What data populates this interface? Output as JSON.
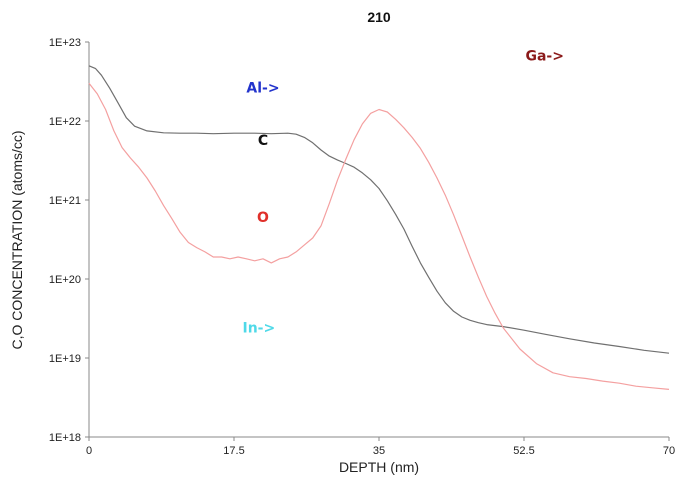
{
  "chart_data": {
    "type": "line",
    "title": "210",
    "xlabel": "DEPTH (nm)",
    "ylabel": "C,O CONCENTRATION (atoms/cc)",
    "xlim": [
      0,
      70
    ],
    "ylim": [
      1e+18,
      1e+23
    ],
    "yscale": "log",
    "grid": false,
    "x_ticks": [
      {
        "value": 0,
        "label": "0"
      },
      {
        "value": 17.5,
        "label": "17.5"
      },
      {
        "value": 35,
        "label": "35"
      },
      {
        "value": 52.5,
        "label": "52.5"
      },
      {
        "value": 70,
        "label": "70"
      }
    ],
    "y_ticks": [
      {
        "value": 1e+18,
        "label": "1E+18"
      },
      {
        "value": 1e+19,
        "label": "1E+19"
      },
      {
        "value": 1e+20,
        "label": "1E+20"
      },
      {
        "value": 1e+21,
        "label": "1E+21"
      },
      {
        "value": 1e+22,
        "label": "1E+22"
      },
      {
        "value": 1e+23,
        "label": "1E+23"
      }
    ],
    "series": [
      {
        "name": "C",
        "color": "#707070",
        "x": [
          0,
          0.8,
          1.5,
          2.5,
          3.5,
          4.5,
          5.5,
          7,
          9,
          11,
          13,
          15,
          17.5,
          20,
          22,
          24,
          25,
          26,
          27,
          28,
          29,
          30,
          31,
          32,
          33,
          34,
          35,
          36,
          37,
          38,
          39,
          40,
          41,
          42,
          43,
          44,
          45,
          46,
          47,
          48,
          50,
          52.5,
          55,
          58,
          61,
          64,
          67,
          70
        ],
        "y": [
          5e+22,
          4.6e+22,
          3.8e+22,
          2.6e+22,
          1.7e+22,
          1.1e+22,
          8.6e+21,
          7.5e+21,
          7.1e+21,
          7e+21,
          7e+21,
          6.9e+21,
          7e+21,
          7e+21,
          6.9e+21,
          7e+21,
          6.8e+21,
          6.2e+21,
          5.3e+21,
          4.3e+21,
          3.6e+21,
          3.2e+21,
          2.9e+21,
          2.6e+21,
          2.2e+21,
          1.8e+21,
          1.4e+21,
          9.8e+20,
          6.6e+20,
          4.3e+20,
          2.6e+20,
          1.6e+20,
          1.05e+20,
          7e+19,
          5e+19,
          3.9e+19,
          3.3e+19,
          3e+19,
          2.8e+19,
          2.65e+19,
          2.5e+19,
          2.25e+19,
          2e+19,
          1.75e+19,
          1.55e+19,
          1.4e+19,
          1.25e+19,
          1.15e+19
        ]
      },
      {
        "name": "O",
        "color": "#f4a0a0",
        "x": [
          0,
          1,
          2,
          3,
          4,
          5,
          6,
          7,
          8,
          9,
          10,
          11,
          12,
          13,
          14,
          15,
          16,
          17,
          18,
          19,
          20,
          21,
          22,
          23,
          24,
          25,
          26,
          27,
          28,
          29,
          30,
          31,
          32,
          33,
          34,
          35,
          36,
          37,
          38,
          39,
          40,
          41,
          42,
          43,
          44,
          45,
          46,
          47,
          48,
          49,
          50,
          52,
          54,
          56,
          58,
          60,
          62,
          64,
          66,
          68,
          70
        ],
        "y": [
          3e+22,
          2.2e+22,
          1.4e+22,
          7.5e+21,
          4.6e+21,
          3.4e+21,
          2.6e+21,
          1.9e+21,
          1.3e+21,
          8.5e+20,
          5.8e+20,
          3.9e+20,
          2.9e+20,
          2.5e+20,
          2.2e+20,
          1.9e+20,
          1.9e+20,
          1.8e+20,
          1.9e+20,
          1.8e+20,
          1.7e+20,
          1.8e+20,
          1.6e+20,
          1.8e+20,
          1.9e+20,
          2.2e+20,
          2.7e+20,
          3.3e+20,
          4.7e+20,
          9e+20,
          1.8e+21,
          3.3e+21,
          5.8e+21,
          9.2e+21,
          1.25e+22,
          1.4e+22,
          1.3e+22,
          1.05e+22,
          8.2e+21,
          6.2e+21,
          4.5e+21,
          3e+21,
          1.9e+21,
          1.15e+21,
          6.5e+20,
          3.5e+20,
          1.9e+20,
          1.05e+20,
          6e+19,
          3.7e+19,
          2.4e+19,
          1.3e+19,
          8.5e+18,
          6.5e+18,
          5.8e+18,
          5.5e+18,
          5.1e+18,
          4.8e+18,
          4.4e+18,
          4.2e+18,
          4e+18
        ]
      }
    ],
    "annotations": [
      {
        "text": "Al->",
        "x": 21,
        "y": 2.3e+22,
        "color": "#2233cc"
      },
      {
        "text": "Ga->",
        "x": 55,
        "y": 5.8e+22,
        "color": "#8b1a1a"
      },
      {
        "text": "C",
        "x": 21,
        "y": 5e+21,
        "color": "#111111"
      },
      {
        "text": "O",
        "x": 21,
        "y": 5.3e+20,
        "color": "#e0302a"
      },
      {
        "text": "In->",
        "x": 20.5,
        "y": 2.1e+19,
        "color": "#4fd9e8"
      }
    ]
  }
}
